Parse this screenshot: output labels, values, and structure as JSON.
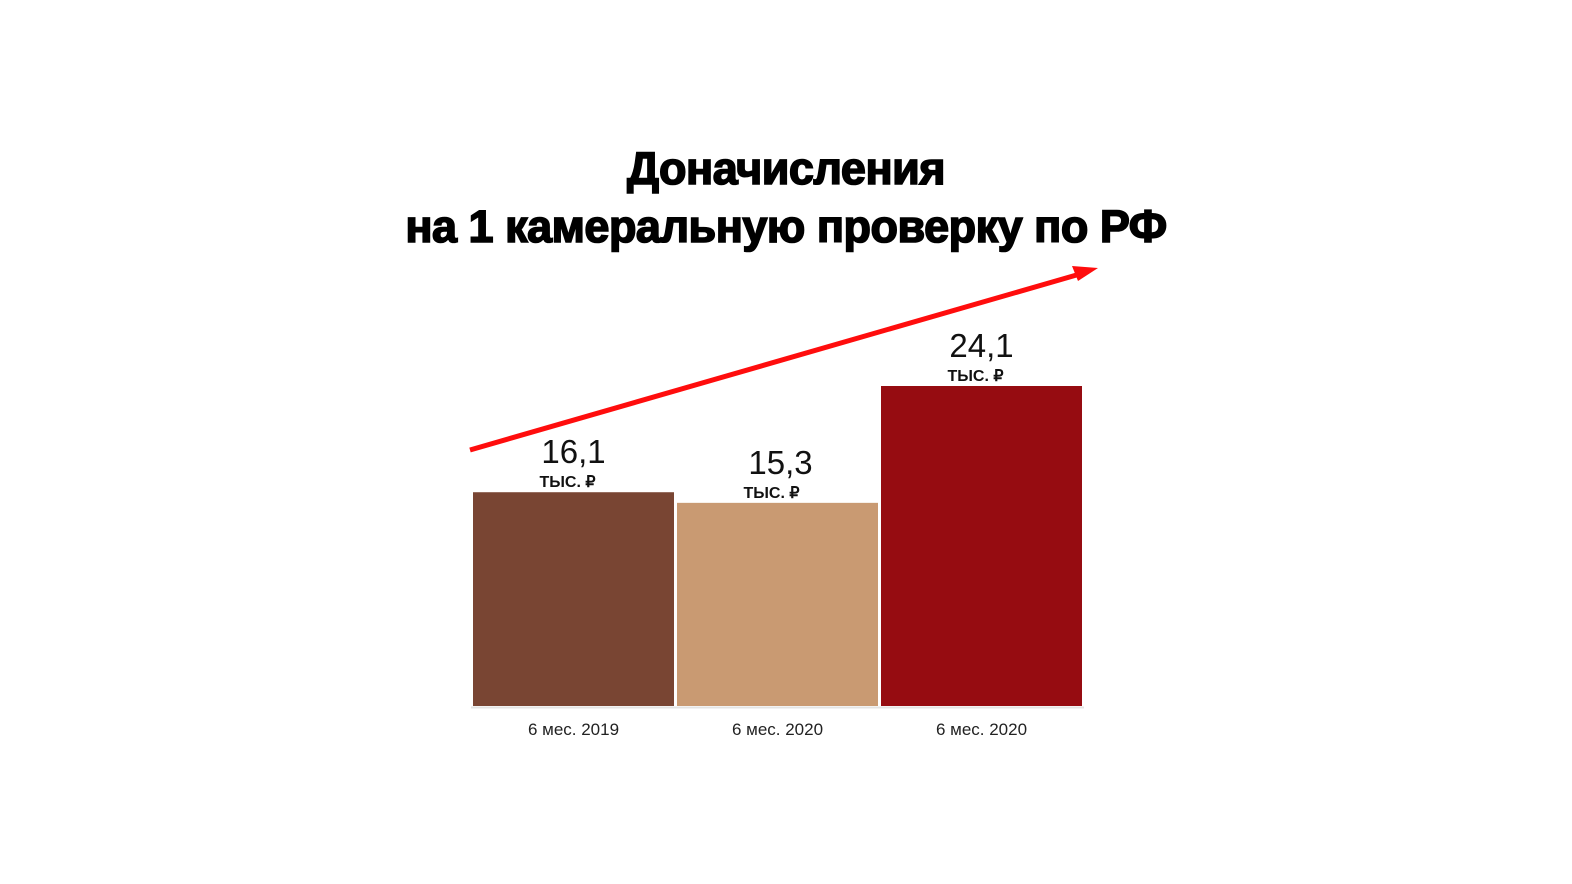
{
  "chart_data": {
    "type": "bar",
    "title": [
      "Доначисления",
      "на 1 камеральную проверку по РФ"
    ],
    "categories": [
      "6 мес. 2019",
      "6 мес. 2020",
      "6 мес. 2020"
    ],
    "values": [
      16.1,
      15.3,
      24.1
    ],
    "value_labels": [
      "16,1",
      "15,3",
      "24,1"
    ],
    "unit_label": "тыс. ₽",
    "colors": [
      "#794533",
      "#c99a72",
      "#960c11"
    ],
    "trend_arrow_color": "#ff0d0d",
    "ylim": [
      0,
      24.1
    ],
    "grid": false,
    "xlabel": "",
    "ylabel": ""
  }
}
